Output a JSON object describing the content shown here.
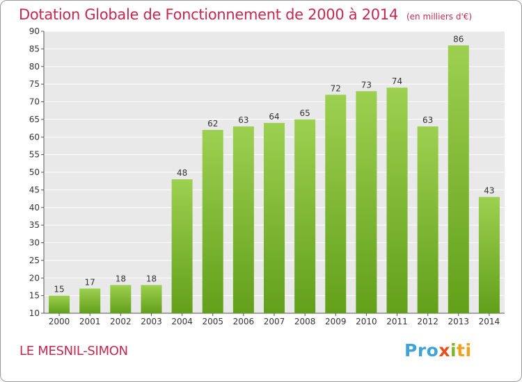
{
  "header": {
    "title": "Dotation Globale de Fonctionnement de 2000 à 2014",
    "unit": "(en milliers d'€)"
  },
  "footer": {
    "commune": "LE MESNIL-SIMON",
    "logo_parts": [
      "Pro",
      "x",
      "i",
      "ti"
    ]
  },
  "colors": {
    "accent": "#c4284f",
    "bar_top": "#9dd050",
    "bar_bottom": "#62a01a",
    "plot_bg": "#e9e9e9"
  },
  "chart_data": {
    "type": "bar",
    "categories": [
      "2000",
      "2001",
      "2002",
      "2003",
      "2004",
      "2005",
      "2006",
      "2007",
      "2008",
      "2009",
      "2010",
      "2011",
      "2012",
      "2013",
      "2014"
    ],
    "values": [
      15,
      17,
      18,
      18,
      48,
      62,
      63,
      64,
      65,
      72,
      73,
      74,
      63,
      86,
      43
    ],
    "title": "Dotation Globale de Fonctionnement de 2000 à 2014",
    "subtitle": "(en milliers d'€)",
    "ylim": [
      10,
      90
    ],
    "yticks": [
      10,
      15,
      20,
      25,
      30,
      35,
      40,
      45,
      50,
      55,
      60,
      65,
      70,
      75,
      80,
      85,
      90
    ],
    "grid": true,
    "legend": "none"
  }
}
